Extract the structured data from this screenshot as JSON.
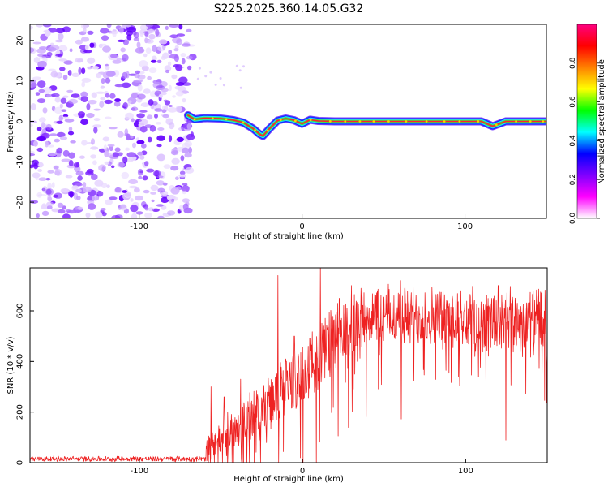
{
  "title": "S225.2025.360.14.05.G32",
  "chart_data": [
    {
      "type": "heatmap",
      "name": "spectrogram",
      "xlabel": "Height of straight line (km)",
      "ylabel": "Frequency (Hz)",
      "xlim": [
        -167,
        150
      ],
      "ylim": [
        -24,
        24
      ],
      "xticks": [
        -100,
        0,
        100
      ],
      "yticks": [
        -20,
        -10,
        0,
        10,
        20
      ],
      "noise_region_x": [
        -167,
        -70
      ],
      "signal_start_x": -70,
      "ridge": {
        "x": [
          -70,
          -66,
          -60,
          -50,
          -42,
          -36,
          -30,
          -26,
          -24,
          -20,
          -15,
          -10,
          -5,
          0,
          5,
          10,
          20,
          40,
          80,
          110,
          117,
          125,
          150
        ],
        "y": [
          1.5,
          0.5,
          0.8,
          0.7,
          0.3,
          -0.3,
          -1.8,
          -3.2,
          -3.6,
          -1.8,
          0.2,
          0.7,
          0.3,
          -0.6,
          0.4,
          0.1,
          0.0,
          0.0,
          0.0,
          0.0,
          -1.2,
          0.0,
          0.0
        ]
      },
      "colorbar": {
        "label": "Normalized spectral amplitude",
        "range": [
          0,
          1
        ],
        "ticks": [
          "0.0",
          "0.2",
          "0.4",
          "0.6",
          "0.8"
        ],
        "tick_values": [
          0.0,
          0.2,
          0.4,
          0.6,
          0.8
        ],
        "colors": [
          "#ffffff",
          "#ff00ff",
          "#8000ff",
          "#0000ff",
          "#00ffff",
          "#00ff00",
          "#ffff00",
          "#ff8000",
          "#ff0000",
          "#ff0080"
        ]
      }
    },
    {
      "type": "line",
      "name": "snr",
      "xlabel": "Height of straight line (km)",
      "ylabel": "SNR (10 * v/v)",
      "xlim": [
        -167,
        150
      ],
      "ylim": [
        0,
        770
      ],
      "xticks": [
        -100,
        0,
        100
      ],
      "yticks": [
        0,
        200,
        400,
        600
      ],
      "color": "#ee2222",
      "envelope": {
        "x": [
          -167,
          -60,
          -58,
          -50,
          -40,
          -30,
          -20,
          -10,
          0,
          10,
          20,
          30,
          40,
          60,
          80,
          100,
          120,
          140,
          150
        ],
        "baseline": [
          15,
          15,
          60,
          100,
          140,
          190,
          240,
          290,
          360,
          420,
          480,
          530,
          580,
          580,
          575,
          560,
          550,
          560,
          560
        ],
        "amplitude": [
          12,
          12,
          80,
          90,
          100,
          120,
          130,
          140,
          150,
          160,
          170,
          160,
          140,
          140,
          140,
          150,
          150,
          150,
          150
        ]
      },
      "spikes": [
        {
          "x": -56,
          "y": 300
        },
        {
          "x": -48,
          "y": 260
        },
        {
          "x": -38,
          "y": 330
        },
        {
          "x": -15,
          "y": 740
        },
        {
          "x": -10,
          "y": 400
        },
        {
          "x": -5,
          "y": 500
        },
        {
          "x": 11,
          "y": 770
        },
        {
          "x": 30,
          "y": 700
        },
        {
          "x": 60,
          "y": 720
        },
        {
          "x": 120,
          "y": 700
        }
      ]
    }
  ]
}
